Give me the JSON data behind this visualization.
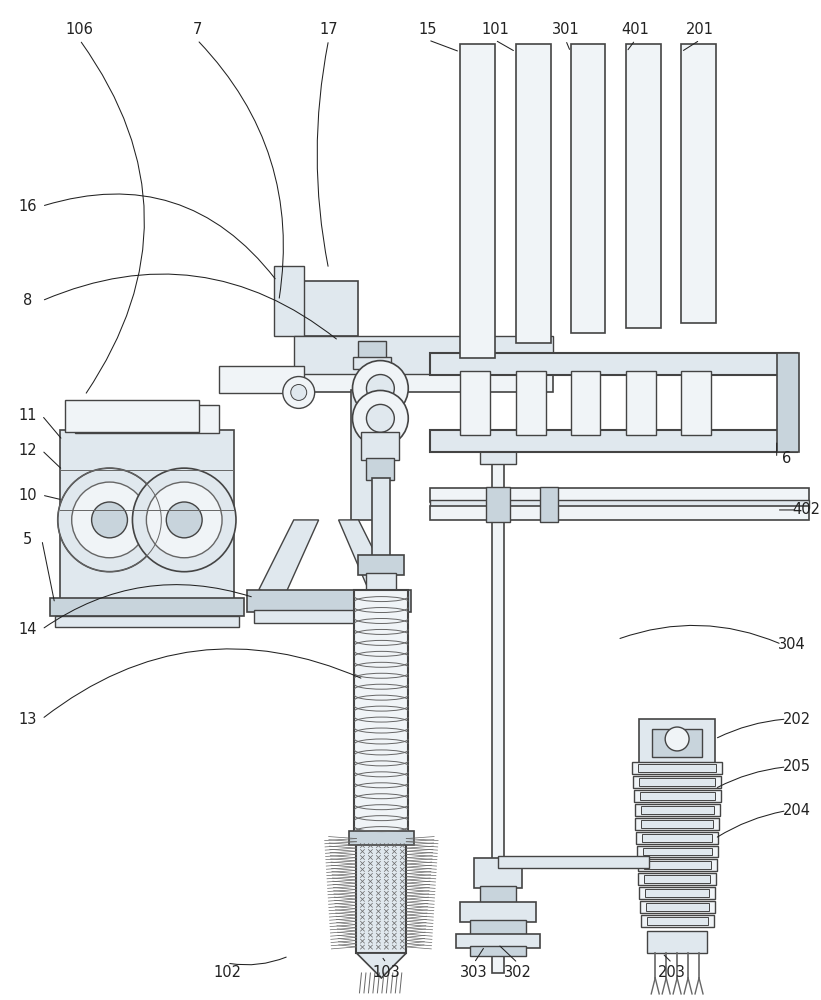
{
  "bg_color": "#ffffff",
  "lc": "#666666",
  "lc_dark": "#444444",
  "fc_light": "#f0f4f7",
  "fc_mid": "#e0e8ee",
  "fc_dark": "#c8d4dc",
  "ann_color": "#222222",
  "fs": 10.5,
  "lw": 1.0,
  "lw2": 0.7,
  "lw3": 0.5
}
